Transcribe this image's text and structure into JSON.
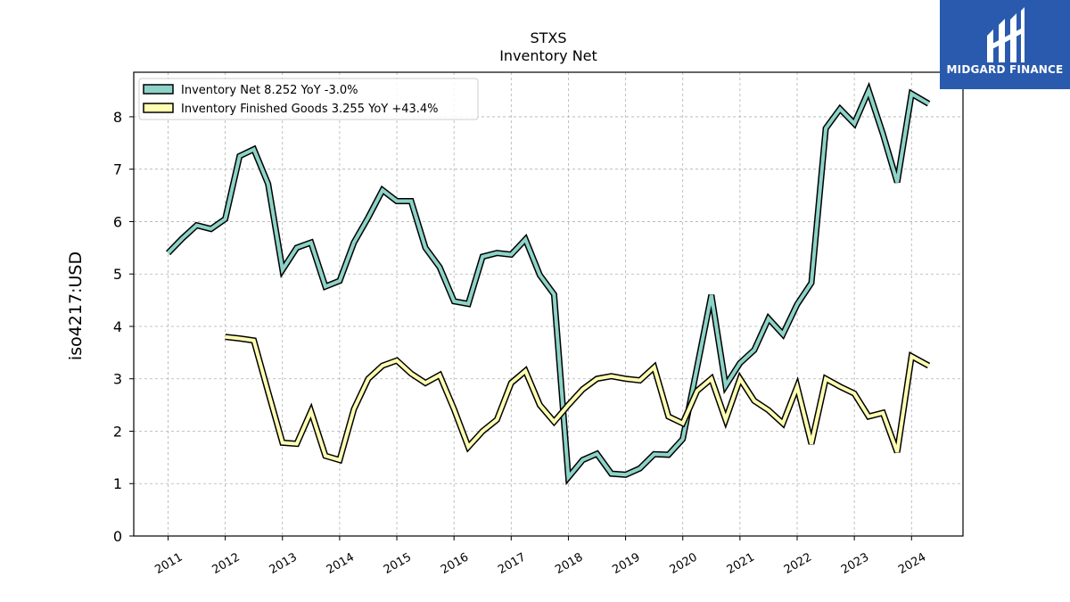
{
  "chart_data": {
    "type": "line",
    "title": "STXS",
    "subtitle": "Inventory Net",
    "ylabel": "iso4217:USD",
    "xlabel": "",
    "ylim": [
      0,
      8.85
    ],
    "xlim": [
      2010.4,
      2024.9
    ],
    "yticks": [
      0,
      1,
      2,
      3,
      4,
      5,
      6,
      7,
      8
    ],
    "xticks": [
      "2011",
      "2012",
      "2013",
      "2014",
      "2015",
      "2016",
      "2017",
      "2018",
      "2019",
      "2020",
      "2021",
      "2022",
      "2023",
      "2024"
    ],
    "grid": true,
    "legend_position": "top-left",
    "series": [
      {
        "name": "Inventory Net  8.252 YoY -3.0%",
        "color": "#8dd3c7",
        "x": [
          2011.0,
          2011.25,
          2011.5,
          2011.75,
          2012.0,
          2012.25,
          2012.5,
          2012.75,
          2013.0,
          2013.25,
          2013.5,
          2013.75,
          2014.0,
          2014.25,
          2014.5,
          2014.75,
          2015.0,
          2015.25,
          2015.5,
          2015.75,
          2016.0,
          2016.25,
          2016.5,
          2016.75,
          2017.0,
          2017.25,
          2017.5,
          2017.75,
          2018.0,
          2018.25,
          2018.5,
          2018.75,
          2019.0,
          2019.25,
          2019.5,
          2019.75,
          2020.0,
          2020.25,
          2020.5,
          2020.75,
          2021.0,
          2021.25,
          2021.5,
          2021.75,
          2022.0,
          2022.25,
          2022.5,
          2022.75,
          2023.0,
          2023.25,
          2023.5,
          2023.75,
          2024.0,
          2024.3
        ],
        "values": [
          5.4,
          5.68,
          5.93,
          5.86,
          6.05,
          7.25,
          7.38,
          6.72,
          5.08,
          5.5,
          5.6,
          4.76,
          4.87,
          5.6,
          6.08,
          6.6,
          6.39,
          6.39,
          5.5,
          5.13,
          4.48,
          4.43,
          5.33,
          5.4,
          5.37,
          5.66,
          4.98,
          4.61,
          1.12,
          1.45,
          1.57,
          1.19,
          1.17,
          1.29,
          1.56,
          1.55,
          1.85,
          3.22,
          4.6,
          2.87,
          3.3,
          3.55,
          4.15,
          3.85,
          4.42,
          4.83,
          7.78,
          8.15,
          7.87,
          8.5,
          7.67,
          6.75,
          8.44,
          8.25
        ]
      },
      {
        "name": "Inventory Finished Goods  3.255 YoY +43.4%",
        "color": "#ffffb3",
        "x": [
          2012.0,
          2012.25,
          2012.5,
          2012.75,
          2013.0,
          2013.25,
          2013.5,
          2013.75,
          2014.0,
          2014.25,
          2014.5,
          2014.75,
          2015.0,
          2015.25,
          2015.5,
          2015.75,
          2016.0,
          2016.25,
          2016.5,
          2016.75,
          2017.0,
          2017.25,
          2017.5,
          2017.75,
          2018.0,
          2018.25,
          2018.5,
          2018.75,
          2019.0,
          2019.25,
          2019.5,
          2019.75,
          2020.0,
          2020.25,
          2020.5,
          2020.75,
          2021.0,
          2021.25,
          2021.5,
          2021.75,
          2022.0,
          2022.25,
          2022.5,
          2022.75,
          2023.0,
          2023.25,
          2023.5,
          2023.75,
          2024.0,
          2024.3
        ],
        "values": [
          3.8,
          3.77,
          3.73,
          2.75,
          1.78,
          1.76,
          2.38,
          1.53,
          1.45,
          2.42,
          3.0,
          3.25,
          3.35,
          3.1,
          2.92,
          3.07,
          2.42,
          1.7,
          2.0,
          2.22,
          2.92,
          3.15,
          2.5,
          2.18,
          2.5,
          2.8,
          3.0,
          3.05,
          3.0,
          2.97,
          3.22,
          2.28,
          2.15,
          2.77,
          3.0,
          2.22,
          3.0,
          2.58,
          2.4,
          2.15,
          2.85,
          1.76,
          3.0,
          2.85,
          2.72,
          2.28,
          2.35,
          1.6,
          3.43,
          3.25
        ]
      }
    ]
  },
  "logo": {
    "text": "MIDGARD FINANCE",
    "background": "#2a5aad"
  }
}
